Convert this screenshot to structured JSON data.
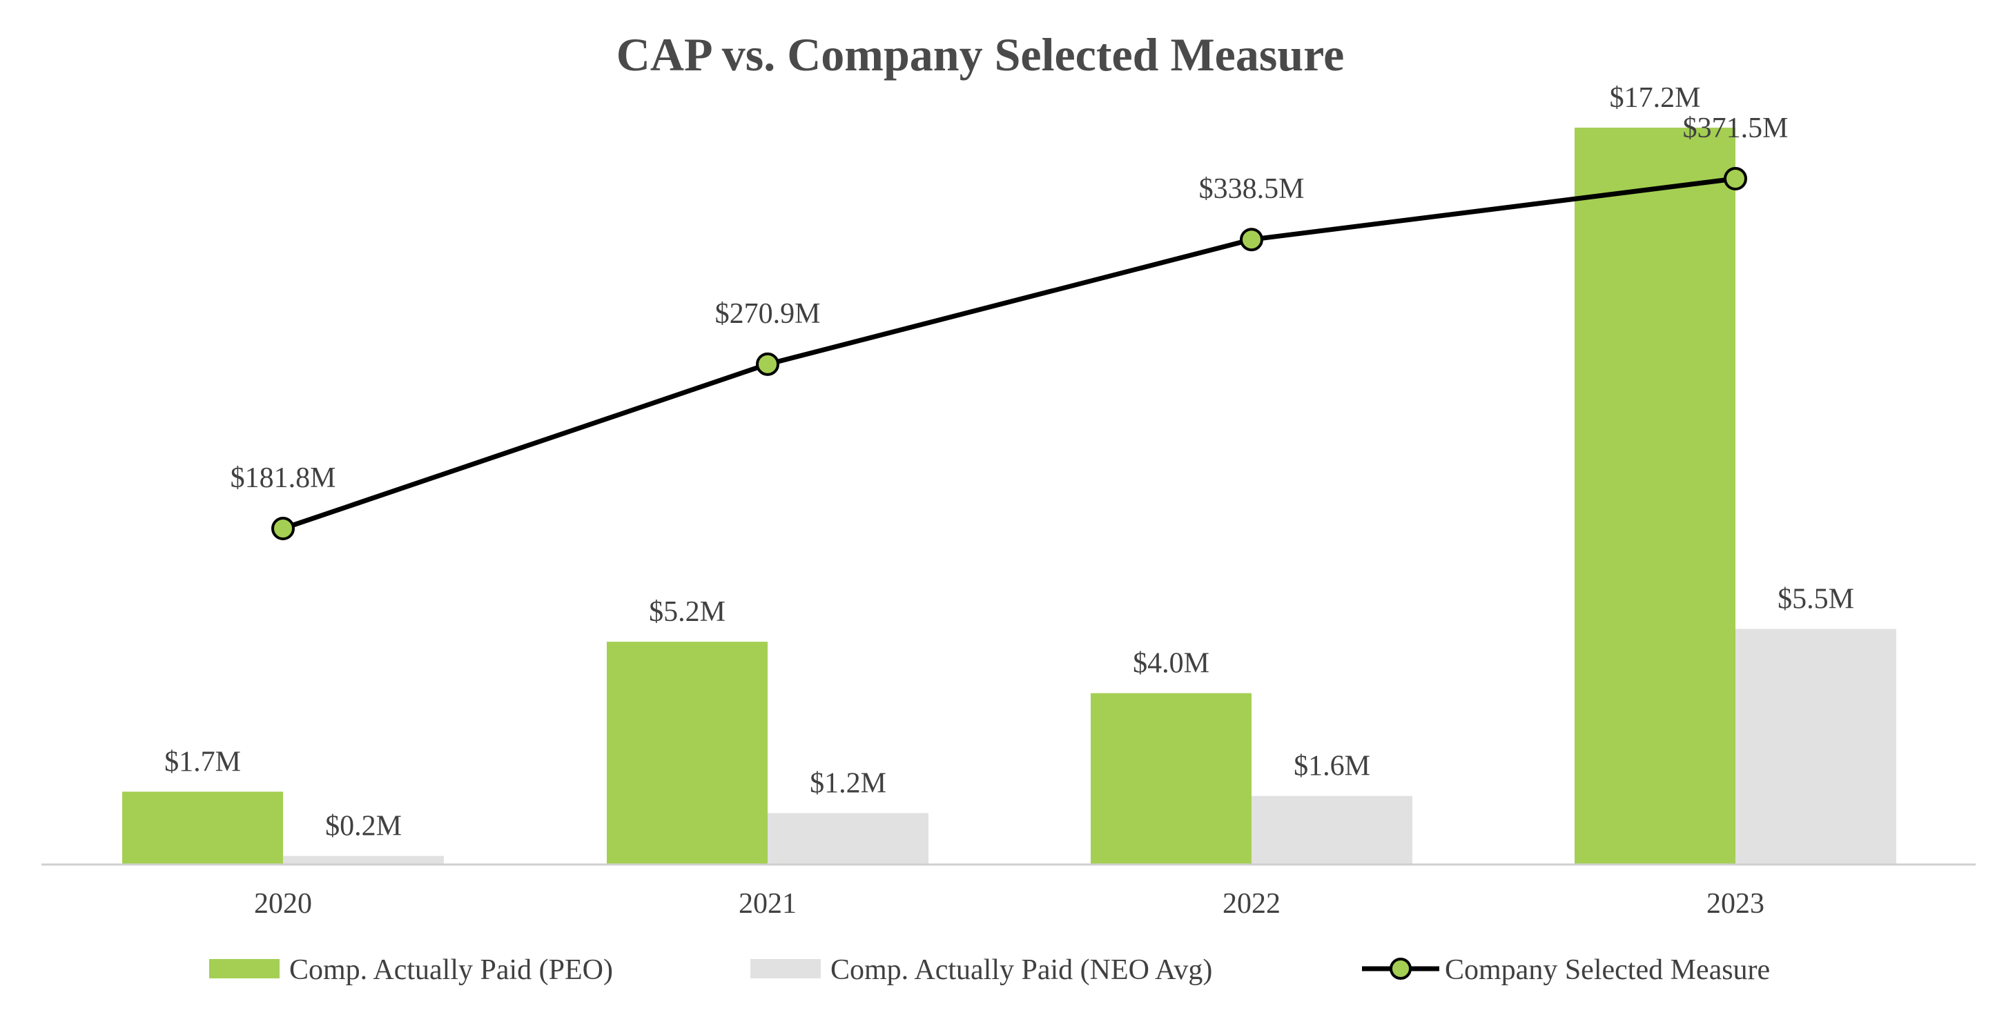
{
  "chart_data": {
    "type": "bar",
    "title": "CAP vs. Company Selected Measure",
    "categories": [
      "2020",
      "2021",
      "2022",
      "2023"
    ],
    "series": [
      {
        "name": "Comp. Actually Paid (PEO)",
        "kind": "bar",
        "axis": "left",
        "color": "#a4cf53",
        "values": [
          1.7,
          5.2,
          4.0,
          17.2
        ],
        "labels": [
          "$1.7M",
          "$5.2M",
          "$4.0M",
          "$17.2M"
        ]
      },
      {
        "name": "Comp. Actually Paid (NEO Avg)",
        "kind": "bar",
        "axis": "left",
        "color": "#e1e1e1",
        "values": [
          0.2,
          1.2,
          1.6,
          5.5
        ],
        "labels": [
          "$0.2M",
          "$1.2M",
          "$1.6M",
          "$5.5M"
        ]
      },
      {
        "name": "Company Selected Measure",
        "kind": "line",
        "axis": "right",
        "color": "#000000",
        "marker_color": "#a4cf53",
        "values": [
          181.8,
          270.9,
          338.5,
          371.5
        ],
        "labels": [
          "$181.8M",
          "$270.9M",
          "$338.5M",
          "$371.5M"
        ]
      }
    ],
    "left_axis": {
      "ylim": [
        0,
        17.7
      ],
      "visible": false
    },
    "right_axis": {
      "ylim": [
        -80,
        440
      ],
      "visible": false
    },
    "xlabel": "",
    "ylabel": "",
    "grid": false,
    "legend": "bottom-center"
  }
}
